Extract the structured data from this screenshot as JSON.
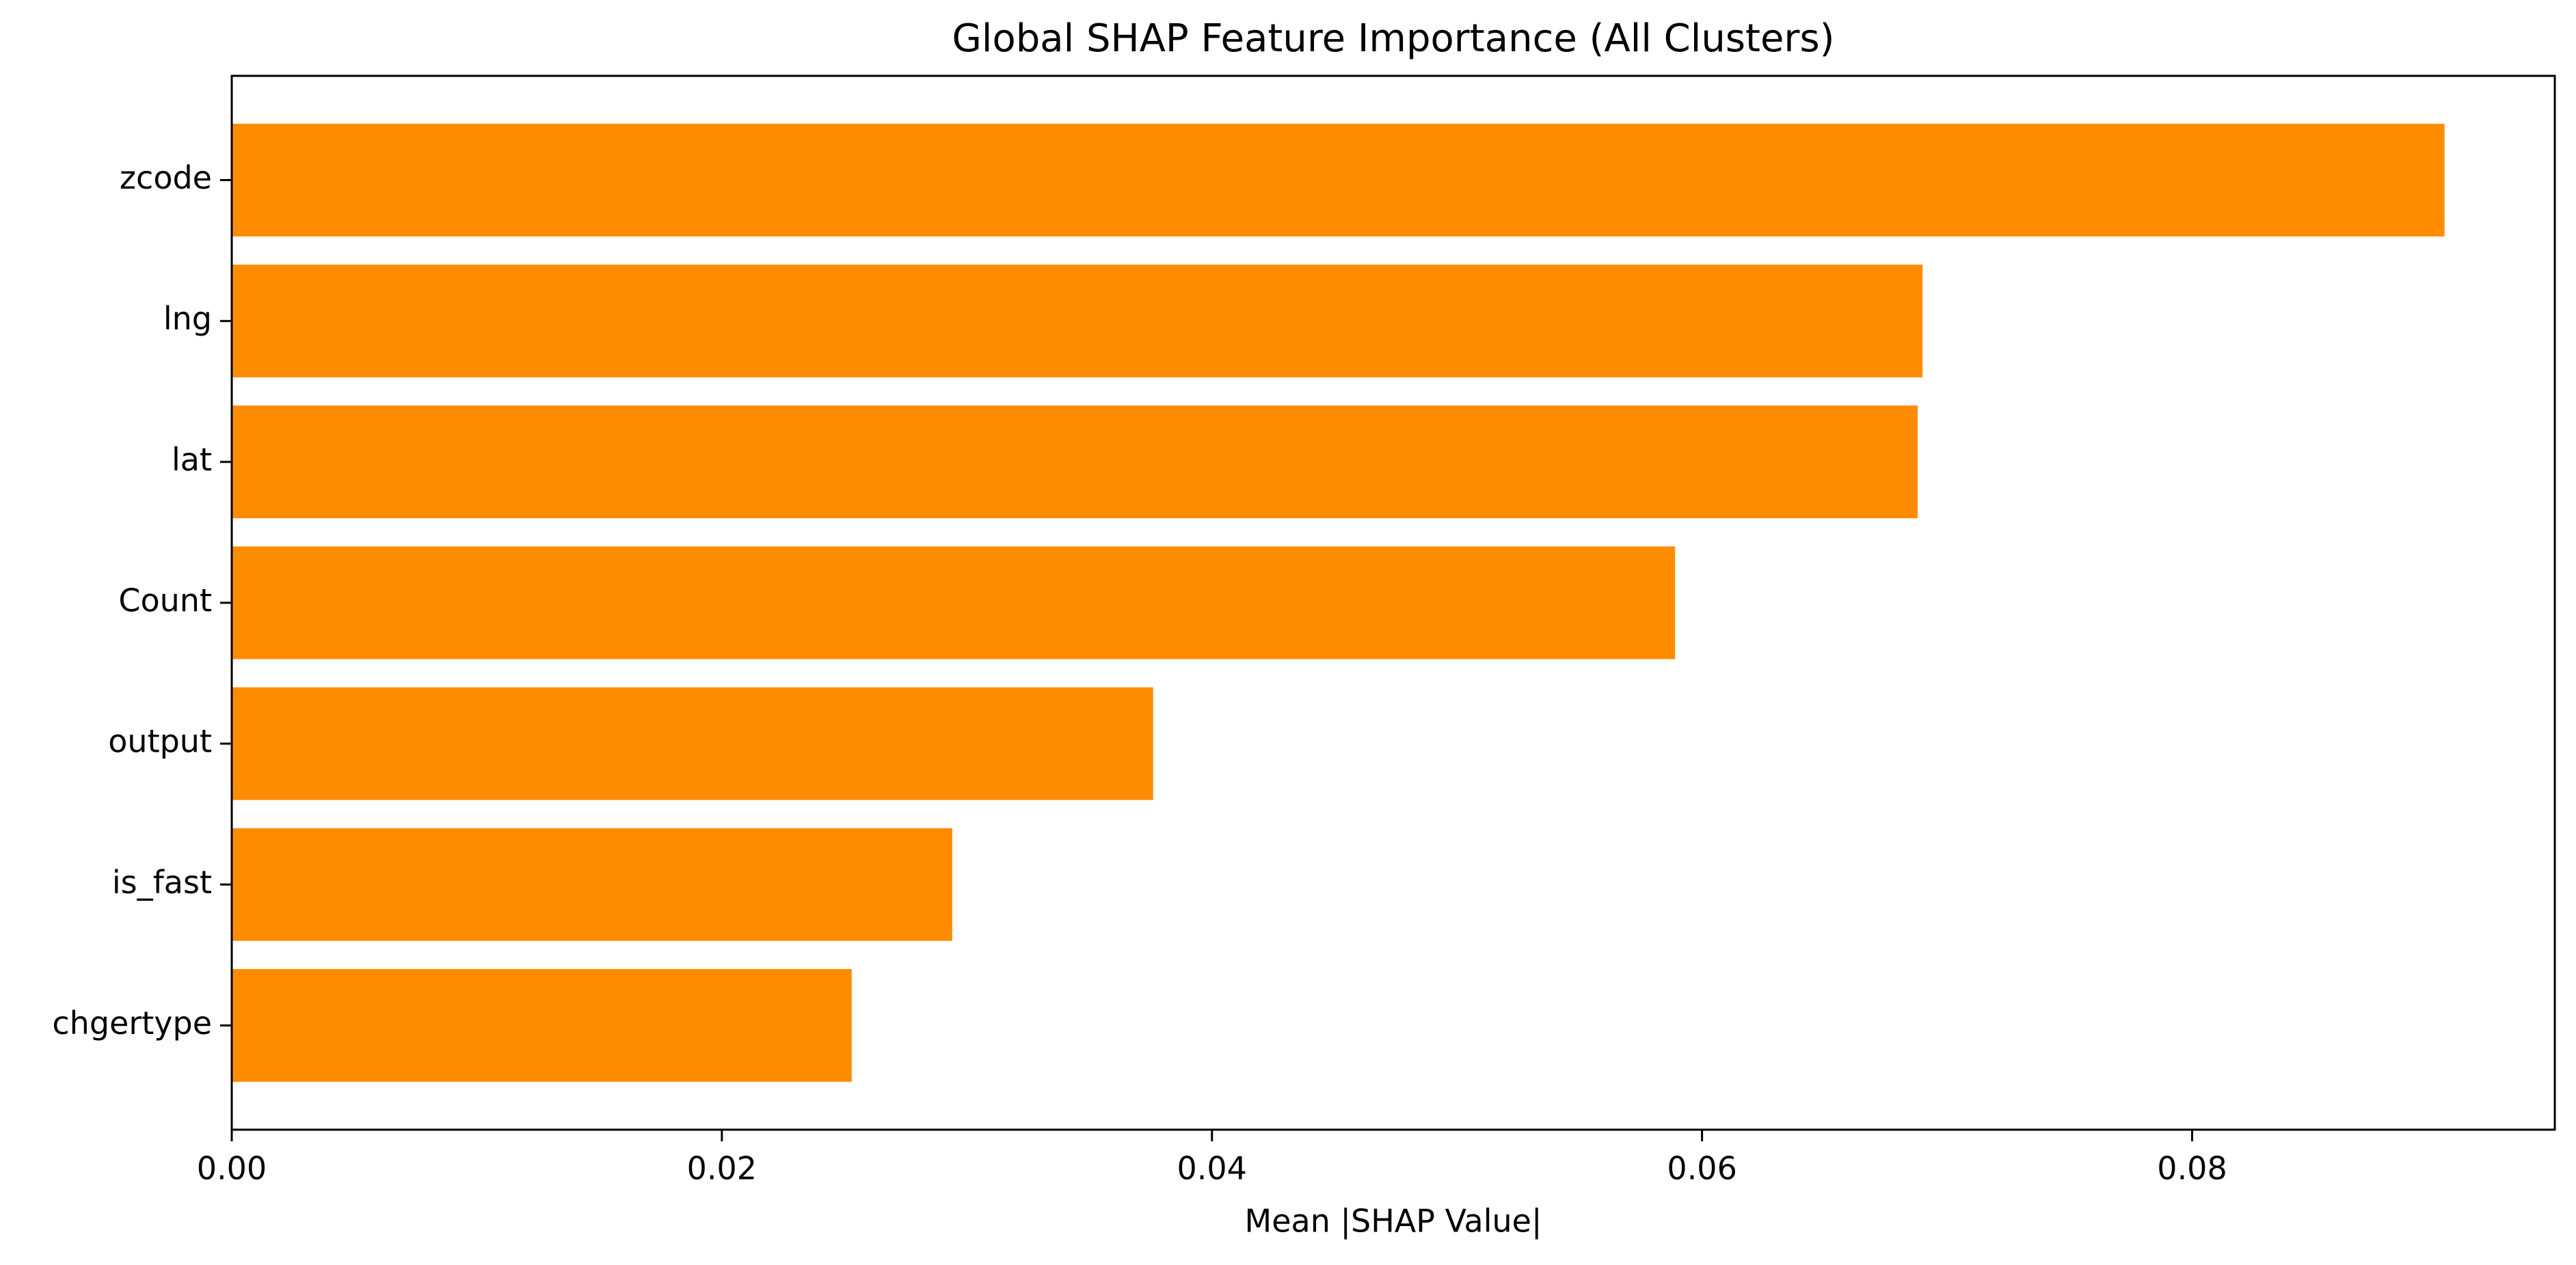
{
  "chart_data": {
    "type": "barh",
    "title": "Global SHAP Feature Importance (All Clusters)",
    "x_label": "Mean |SHAP Value|",
    "categories": [
      "zcode",
      "lng",
      "lat",
      "Count",
      "output",
      "is_fast",
      "chgertype"
    ],
    "values": [
      0.0903,
      0.069,
      0.0688,
      0.0589,
      0.0376,
      0.0294,
      0.0253
    ],
    "color": "#ff8c00",
    "xlim": [
      0,
      0.0948
    ],
    "xticks": [
      {
        "value": 0,
        "label": "0.00"
      },
      0.02,
      0.04,
      0.06,
      0.08
    ]
  }
}
